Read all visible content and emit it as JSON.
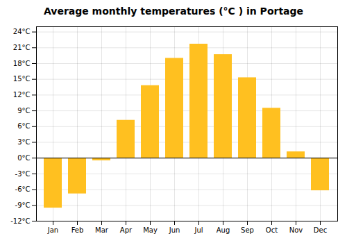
{
  "chart_data": {
    "type": "bar",
    "title": "Average monthly temperatures (°C ) in Portage",
    "categories": [
      "Jan",
      "Feb",
      "Mar",
      "Apr",
      "May",
      "Jun",
      "Jul",
      "Aug",
      "Sep",
      "Oct",
      "Nov",
      "Dec"
    ],
    "values": [
      -9.5,
      -6.8,
      -0.5,
      7.2,
      13.8,
      19.0,
      21.7,
      19.7,
      15.3,
      9.5,
      1.2,
      -6.2
    ],
    "color": "#FFC020",
    "ylim": [
      -12,
      25
    ],
    "yticks": [
      {
        "value": -12,
        "label": "-12°C"
      },
      {
        "value": -9,
        "label": "-9°C"
      },
      {
        "value": -6,
        "label": "-6°C"
      },
      {
        "value": -3,
        "label": "-3°C"
      },
      {
        "value": 0,
        "label": "0°C"
      },
      {
        "value": 3,
        "label": "3°C"
      },
      {
        "value": 6,
        "label": "6°C"
      },
      {
        "value": 9,
        "label": "9°C"
      },
      {
        "value": 12,
        "label": "12°C"
      },
      {
        "value": 15,
        "label": "15°C"
      },
      {
        "value": 18,
        "label": "18°C"
      },
      {
        "value": 21,
        "label": "21°C"
      },
      {
        "value": 24,
        "label": "24°C"
      }
    ],
    "grid": true
  }
}
